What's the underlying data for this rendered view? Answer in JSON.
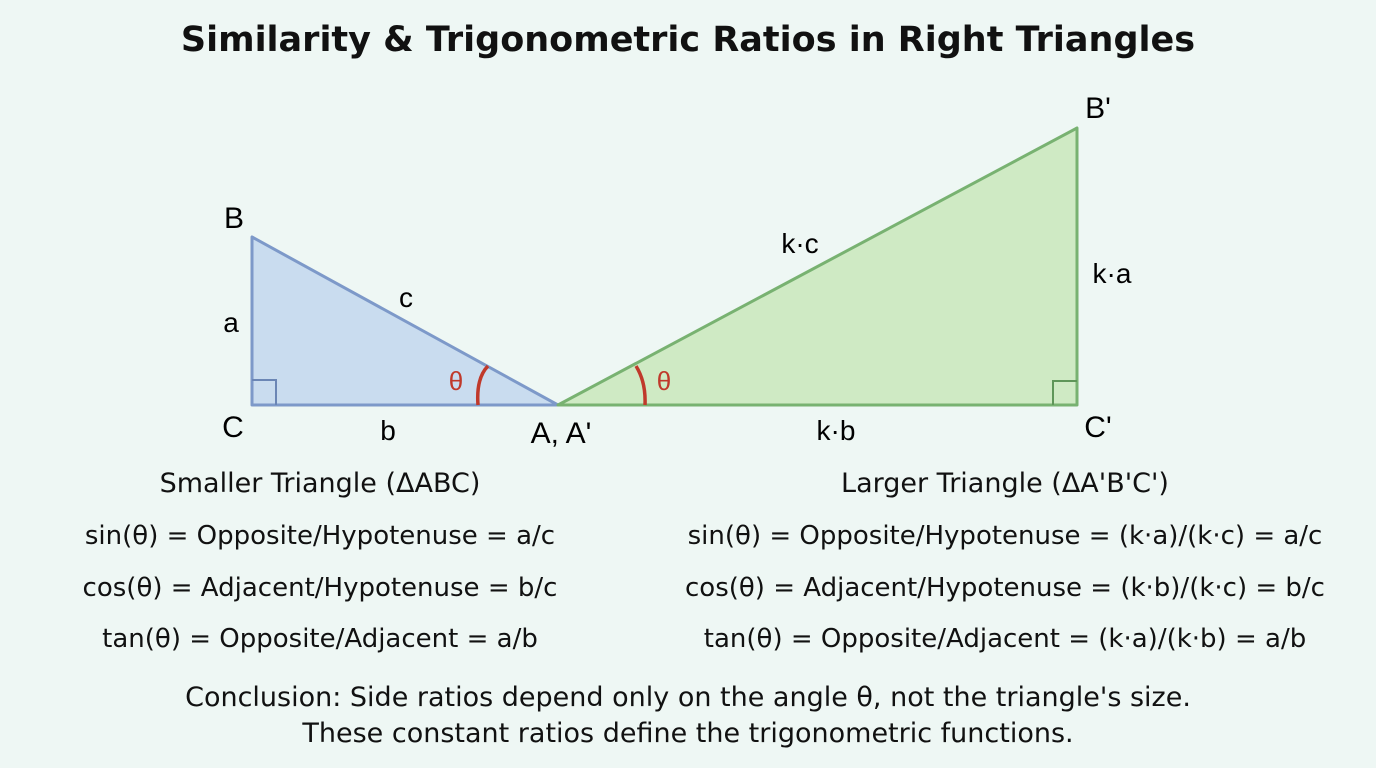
{
  "title": "Similarity & Trigonometric Ratios in Right Triangles",
  "small_triangle": {
    "vertex_B": "B",
    "vertex_C": "C",
    "vertex_A_shared": "A, A'",
    "side_a": "a",
    "side_b": "b",
    "side_c": "c",
    "angle": "θ",
    "caption": "Smaller Triangle (ΔABC)",
    "fill_color": "#c9dcef",
    "stroke_color": "#7d99c9"
  },
  "large_triangle": {
    "vertex_B": "B'",
    "vertex_C": "C'",
    "side_a": "k·a",
    "side_b": "k·b",
    "side_c": "k·c",
    "angle": "θ",
    "caption": "Larger Triangle (ΔA'B'C')",
    "fill_color": "#cfeac4",
    "stroke_color": "#78b271"
  },
  "angle_arc_color": "#c0392b",
  "formulas_small": {
    "sin": "sin(θ) = Opposite/Hypotenuse = a/c",
    "cos": "cos(θ) = Adjacent/Hypotenuse = b/c",
    "tan": "tan(θ) = Opposite/Adjacent = a/b"
  },
  "formulas_large": {
    "sin": "sin(θ) = Opposite/Hypotenuse = (k·a)/(k·c) = a/c",
    "cos": "cos(θ) = Adjacent/Hypotenuse = (k·b)/(k·c) = b/c",
    "tan": "tan(θ) = Opposite/Adjacent = (k·a)/(k·b) = a/b"
  },
  "conclusion": {
    "line1": "Conclusion: Side ratios depend only on the angle θ, not the triangle's size.",
    "line2": "These constant ratios define the trigonometric functions."
  }
}
